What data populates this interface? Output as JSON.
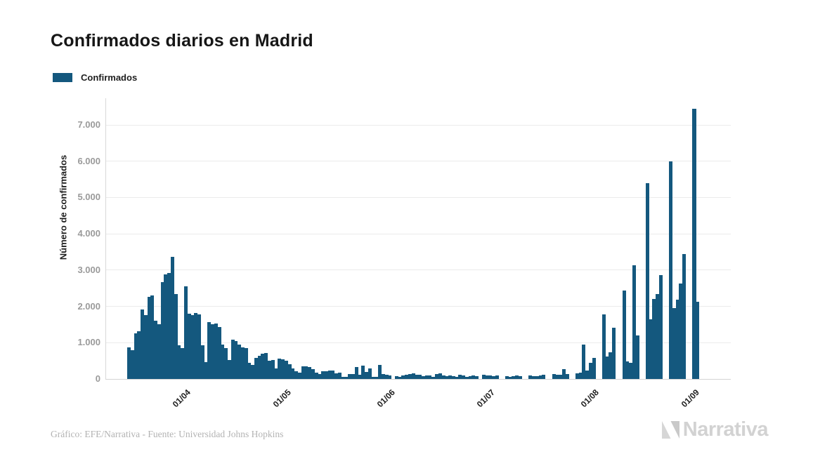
{
  "title": "Confirmados diarios en Madrid",
  "legend": {
    "label": "Confirmados",
    "color": "#14587e"
  },
  "footer": {
    "credit": "Gráfico: EFE/Narrativa - Fuente: Universidad Johns Hopkins"
  },
  "logo": {
    "text": "Narrativa"
  },
  "chart_data": {
    "type": "bar",
    "title": "Confirmados diarios en Madrid",
    "xlabel": "",
    "ylabel": "Número de confirmados",
    "grid": true,
    "legend_position": "top-left",
    "bar_color": "#14587e",
    "ylim": [
      0,
      7736
    ],
    "y_ticks": [
      "0",
      "1.000",
      "2.000",
      "3.000",
      "4.000",
      "5.000",
      "6.000",
      "7.000"
    ],
    "y_tick_values": [
      0,
      1000,
      2000,
      3000,
      4000,
      5000,
      6000,
      7000
    ],
    "x_tick_labels": [
      "01/04",
      "01/05",
      "01/06",
      "01/07",
      "01/08",
      "01/09"
    ],
    "x_tick_indices": [
      17,
      47,
      78,
      108,
      139,
      169
    ],
    "series": [
      {
        "name": "Confirmados",
        "values": [
          880,
          800,
          1250,
          1310,
          1910,
          1760,
          2270,
          2300,
          1600,
          1500,
          2660,
          2890,
          2920,
          3370,
          2340,
          920,
          850,
          2560,
          1790,
          1760,
          1820,
          1770,
          920,
          460,
          1560,
          1500,
          1530,
          1430,
          950,
          850,
          530,
          1080,
          1050,
          950,
          880,
          850,
          450,
          390,
          590,
          630,
          690,
          710,
          500,
          530,
          300,
          560,
          540,
          500,
          400,
          300,
          210,
          170,
          350,
          340,
          320,
          280,
          170,
          130,
          210,
          220,
          240,
          240,
          155,
          180,
          60,
          60,
          140,
          130,
          320,
          110,
          370,
          200,
          285,
          60,
          60,
          390,
          140,
          110,
          90,
          0,
          70,
          50,
          90,
          110,
          140,
          160,
          120,
          110,
          80,
          100,
          90,
          60,
          130,
          150,
          100,
          80,
          90,
          70,
          50,
          110,
          90,
          60,
          80,
          100,
          70,
          0,
          120,
          100,
          90,
          70,
          100,
          0,
          0,
          80,
          60,
          70,
          90,
          70,
          0,
          0,
          90,
          80,
          70,
          100,
          110,
          0,
          0,
          130,
          110,
          120,
          280,
          140,
          0,
          0,
          160,
          180,
          950,
          230,
          450,
          580,
          0,
          0,
          1770,
          610,
          740,
          1420,
          0,
          0,
          2430,
          480,
          450,
          3130,
          1190,
          0,
          0,
          5390,
          1650,
          2210,
          2350,
          2870,
          0,
          0,
          6000,
          1950,
          2190,
          2630,
          3450,
          0,
          0,
          7450,
          2120
        ]
      }
    ]
  }
}
